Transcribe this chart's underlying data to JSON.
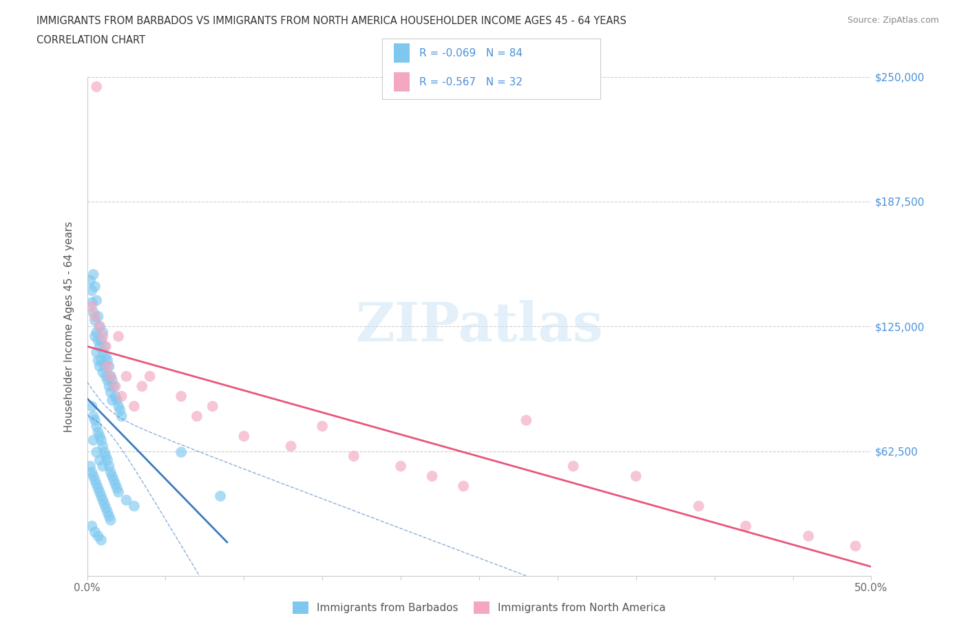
{
  "title_line1": "IMMIGRANTS FROM BARBADOS VS IMMIGRANTS FROM NORTH AMERICA HOUSEHOLDER INCOME AGES 45 - 64 YEARS",
  "title_line2": "CORRELATION CHART",
  "source": "Source: ZipAtlas.com",
  "ylabel": "Householder Income Ages 45 - 64 years",
  "xlim": [
    0,
    0.5
  ],
  "ylim": [
    0,
    250000
  ],
  "xticks": [
    0.0,
    0.05,
    0.1,
    0.15,
    0.2,
    0.25,
    0.3,
    0.35,
    0.4,
    0.45,
    0.5
  ],
  "xticklabels": [
    "0.0%",
    "",
    "",
    "",
    "",
    "",
    "",
    "",
    "",
    "",
    "50.0%"
  ],
  "yticks": [
    0,
    62500,
    125000,
    187500,
    250000
  ],
  "yticklabels_right": [
    "",
    "$62,500",
    "$125,000",
    "$187,500",
    "$250,000"
  ],
  "watermark": "ZIPatlas",
  "barbados_color": "#7ec8f0",
  "northamerica_color": "#f4a8c0",
  "barbados_line_color": "#3a7abf",
  "northamerica_line_color": "#e8557a",
  "barbados_R": -0.069,
  "barbados_N": 84,
  "northamerica_R": -0.567,
  "northamerica_N": 32,
  "legend_label1": "Immigrants from Barbados",
  "legend_label2": "Immigrants from North America",
  "barbados_x": [
    0.002,
    0.003,
    0.003,
    0.004,
    0.004,
    0.005,
    0.005,
    0.005,
    0.006,
    0.006,
    0.006,
    0.007,
    0.007,
    0.007,
    0.008,
    0.008,
    0.008,
    0.009,
    0.009,
    0.01,
    0.01,
    0.01,
    0.011,
    0.011,
    0.012,
    0.012,
    0.013,
    0.013,
    0.014,
    0.014,
    0.015,
    0.015,
    0.016,
    0.016,
    0.017,
    0.018,
    0.019,
    0.02,
    0.021,
    0.022,
    0.003,
    0.004,
    0.005,
    0.006,
    0.007,
    0.008,
    0.009,
    0.01,
    0.011,
    0.012,
    0.013,
    0.014,
    0.015,
    0.016,
    0.017,
    0.018,
    0.019,
    0.02,
    0.025,
    0.03,
    0.002,
    0.003,
    0.004,
    0.005,
    0.006,
    0.007,
    0.008,
    0.009,
    0.01,
    0.011,
    0.012,
    0.013,
    0.014,
    0.015,
    0.004,
    0.006,
    0.008,
    0.01,
    0.06,
    0.085,
    0.003,
    0.005,
    0.007,
    0.009
  ],
  "barbados_y": [
    148000,
    143000,
    137000,
    151000,
    132000,
    145000,
    128000,
    120000,
    138000,
    122000,
    112000,
    130000,
    118000,
    108000,
    125000,
    115000,
    105000,
    118000,
    108000,
    122000,
    112000,
    102000,
    115000,
    105000,
    110000,
    100000,
    108000,
    98000,
    105000,
    95000,
    100000,
    92000,
    98000,
    88000,
    95000,
    90000,
    88000,
    85000,
    83000,
    80000,
    85000,
    80000,
    78000,
    75000,
    72000,
    70000,
    68000,
    65000,
    62000,
    60000,
    58000,
    55000,
    52000,
    50000,
    48000,
    46000,
    44000,
    42000,
    38000,
    35000,
    55000,
    52000,
    50000,
    48000,
    46000,
    44000,
    42000,
    40000,
    38000,
    36000,
    34000,
    32000,
    30000,
    28000,
    68000,
    62000,
    58000,
    55000,
    62000,
    40000,
    25000,
    22000,
    20000,
    18000
  ],
  "northamerica_x": [
    0.003,
    0.005,
    0.006,
    0.008,
    0.01,
    0.012,
    0.013,
    0.015,
    0.018,
    0.02,
    0.022,
    0.025,
    0.03,
    0.035,
    0.04,
    0.06,
    0.07,
    0.08,
    0.1,
    0.13,
    0.15,
    0.17,
    0.2,
    0.22,
    0.24,
    0.28,
    0.31,
    0.35,
    0.39,
    0.42,
    0.46,
    0.49
  ],
  "northamerica_y": [
    135000,
    130000,
    245000,
    125000,
    120000,
    115000,
    105000,
    100000,
    95000,
    120000,
    90000,
    100000,
    85000,
    95000,
    100000,
    90000,
    80000,
    85000,
    70000,
    65000,
    75000,
    60000,
    55000,
    50000,
    45000,
    78000,
    55000,
    50000,
    35000,
    25000,
    20000,
    15000
  ]
}
